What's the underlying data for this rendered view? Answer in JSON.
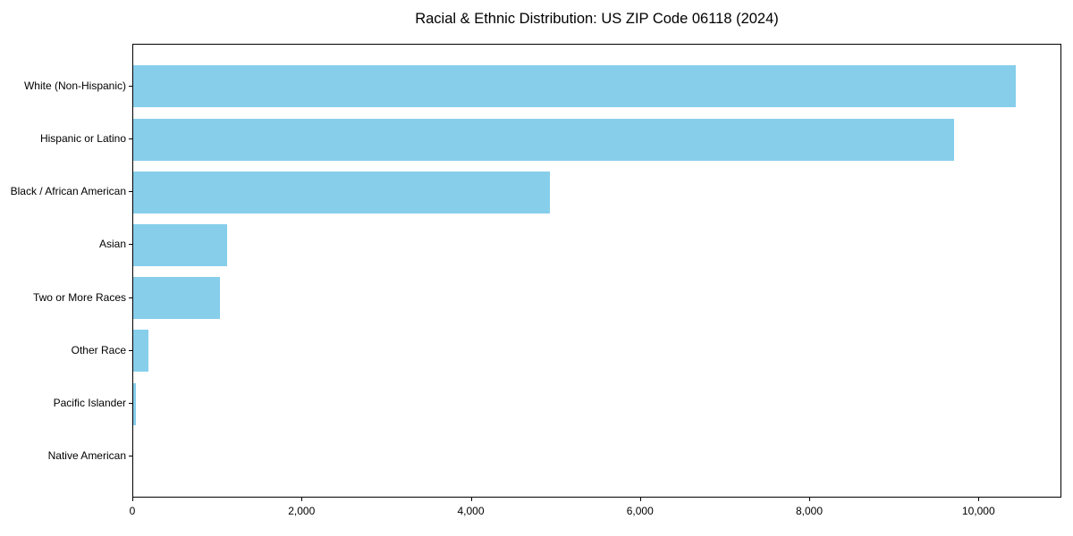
{
  "title": "Racial & Ethnic Distribution: US ZIP Code 06118 (2024)",
  "chart_data": {
    "type": "bar",
    "orientation": "horizontal",
    "title": "Racial & Ethnic Distribution: US ZIP Code 06118 (2024)",
    "xlabel": "",
    "ylabel": "",
    "categories": [
      "White (Non-Hispanic)",
      "Hispanic or Latino",
      "Black / African American",
      "Asian",
      "Two or More Races",
      "Other Race",
      "Pacific Islander",
      "Native American"
    ],
    "values": [
      10450,
      9720,
      4930,
      1110,
      1025,
      185,
      30,
      0
    ],
    "bar_color": "#87CEEB",
    "frame_color": "#000000",
    "background_color": "#ffffff",
    "xlim": [
      0,
      10980
    ],
    "x_ticks": [
      0,
      2000,
      4000,
      6000,
      8000,
      10000
    ],
    "x_tick_labels": [
      "0",
      "2,000",
      "4,000",
      "6,000",
      "8,000",
      "10,000"
    ],
    "grid": false,
    "legend": null
  }
}
